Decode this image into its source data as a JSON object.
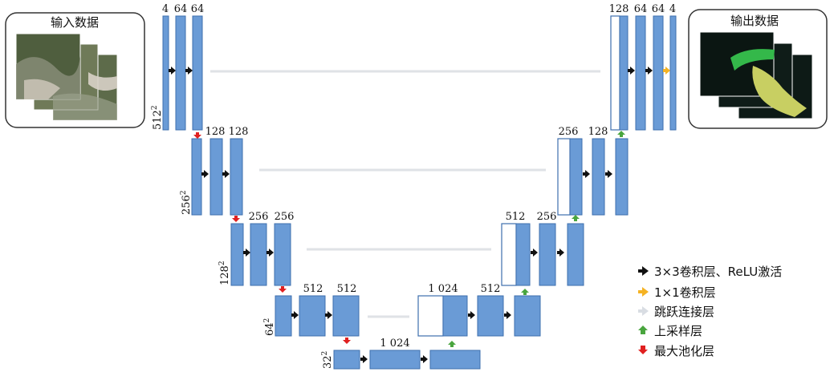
{
  "input_panel": {
    "title": "输入数据"
  },
  "output_panel": {
    "title": "输出数据"
  },
  "encoder": {
    "level1": {
      "channels": [
        "4",
        "64",
        "64"
      ],
      "size": "512",
      "exp": "2"
    },
    "level2": {
      "channels": [
        "128",
        "128"
      ],
      "size": "256",
      "exp": "2"
    },
    "level3": {
      "channels": [
        "256",
        "256"
      ],
      "size": "128",
      "exp": "2"
    },
    "level4": {
      "channels": [
        "512",
        "512"
      ],
      "size": "64",
      "exp": "2"
    },
    "bottleneck": {
      "channels": [
        "1 024"
      ],
      "size": "32",
      "exp": "2"
    }
  },
  "decoder": {
    "level4": {
      "channels": [
        "1 024",
        "512"
      ]
    },
    "level3": {
      "channels": [
        "512",
        "256"
      ]
    },
    "level2": {
      "channels": [
        "256",
        "128"
      ]
    },
    "level1": {
      "channels": [
        "128",
        "64",
        "64",
        "4"
      ]
    }
  },
  "legend": {
    "items": [
      {
        "label": "3×3卷积层、ReLU激活",
        "color": "#111111"
      },
      {
        "label": "1×1卷积层",
        "color": "#f5b324"
      },
      {
        "label": "跳跃连接层",
        "color": "#d9dde3"
      },
      {
        "label": "上采样层",
        "color": "#49a53e"
      },
      {
        "label": "最大池化层",
        "color": "#e02020"
      }
    ]
  }
}
